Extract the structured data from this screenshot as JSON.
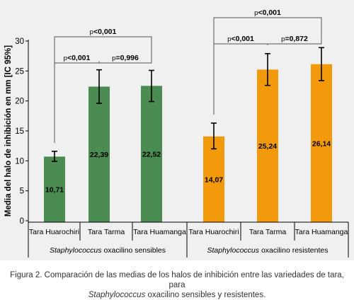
{
  "chart_data": {
    "type": "bar",
    "ylabel": "Media del halo de inhibición en mm [IC 95%]",
    "ylim": [
      0,
      30
    ],
    "yticks": [
      0,
      5,
      10,
      15,
      20,
      25,
      30
    ],
    "grid": false,
    "categories": [
      "Tara Huarochiri",
      "Tara Tarma",
      "Tara Huamanga",
      "Tara Huarochiri",
      "Tara Tarma",
      "Tara Huamanga"
    ],
    "groups": [
      {
        "name_italic": "Staphylococcus",
        "name_rest": " oxacilino sensibles",
        "color": "#4a8c52",
        "categories": [
          "Tara Huarochiri",
          "Tara Tarma",
          "Tara Huamanga"
        ],
        "values": [
          10.71,
          22.39,
          22.52
        ],
        "value_labels": [
          "10,71",
          "22,39",
          "22,52"
        ],
        "ci_low": [
          9.9,
          19.6,
          19.9
        ],
        "ci_high": [
          11.6,
          25.2,
          25.1
        ]
      },
      {
        "name_italic": "Staphylococcus",
        "name_rest": " oxacilino resistentes",
        "color": "#f29a0c",
        "categories": [
          "Tara Huarochiri",
          "Tara Tarma",
          "Tara Huamanga"
        ],
        "values": [
          14.07,
          25.24,
          26.14
        ],
        "value_labels": [
          "14,07",
          "25,24",
          "26,14"
        ],
        "ci_low": [
          12.0,
          22.6,
          23.4
        ],
        "ci_high": [
          16.3,
          27.9,
          28.9
        ]
      }
    ],
    "comparisons": [
      {
        "from": 0,
        "to": 1,
        "level": 1,
        "label_prefix": "p",
        "label_value": "<0,001"
      },
      {
        "from": 1,
        "to": 2,
        "level": 1,
        "label_prefix": "p",
        "label_value": "=0,996"
      },
      {
        "from": 0,
        "to": 2,
        "level": 2,
        "label_prefix": "p",
        "label_value": "<0,001"
      },
      {
        "from": 3,
        "to": 4,
        "level": 1,
        "label_prefix": "p",
        "label_value": "<0,001"
      },
      {
        "from": 4,
        "to": 5,
        "level": 0,
        "label_prefix": "p",
        "label_value": "=0,872"
      },
      {
        "from": 3,
        "to": 5,
        "level": 2,
        "label_prefix": "p",
        "label_value": "<0,001"
      }
    ]
  },
  "caption": {
    "line1": "Figura 2. Comparación de las medias de los halos de inhibición entre las variedades de tara, para",
    "line2_italic": "Staphylococcus",
    "line2_rest": " oxacilino sensibles y resistentes."
  }
}
